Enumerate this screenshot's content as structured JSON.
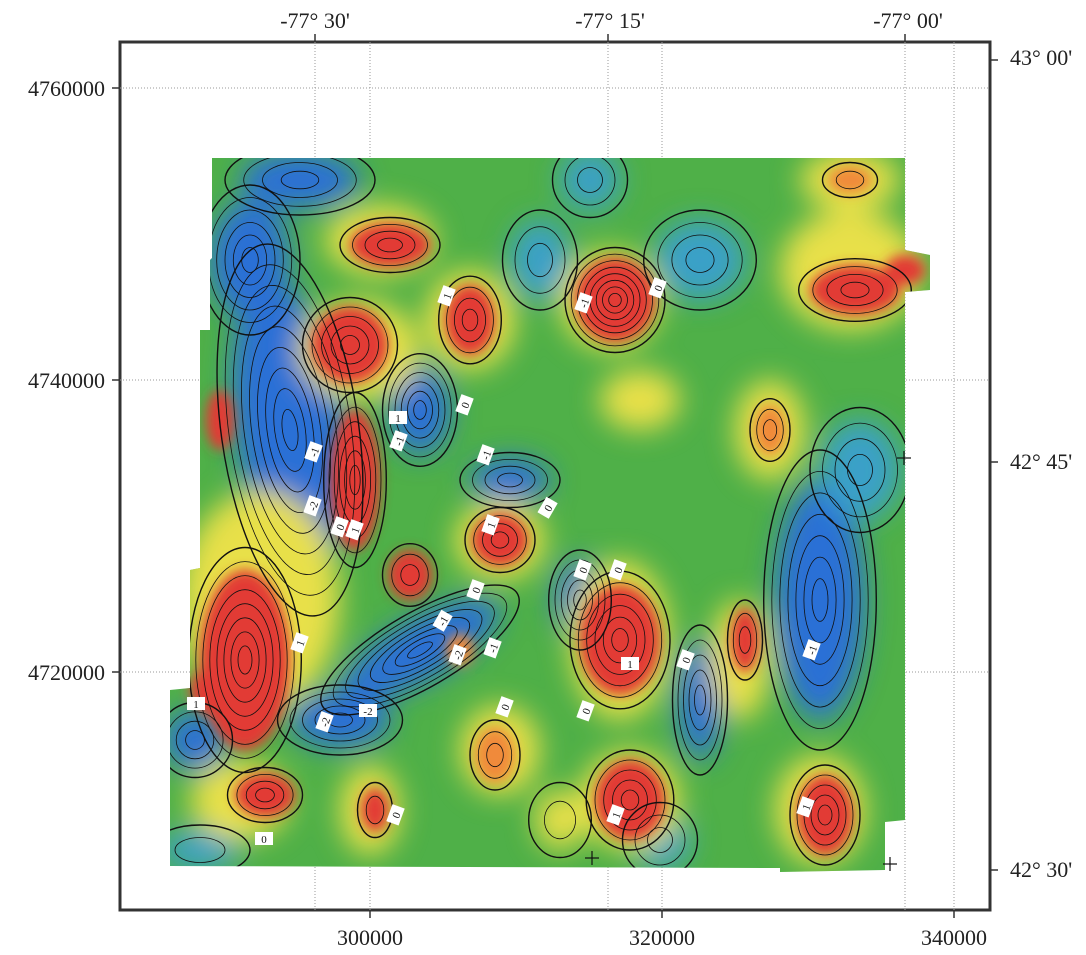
{
  "map": {
    "top_longitude_labels": [
      "-77° 30'",
      "-77° 15'",
      "-77° 00'"
    ],
    "right_latitude_labels": [
      "43° 00'",
      "42° 45'",
      "42° 30'"
    ],
    "left_northing_labels": [
      "4760000",
      "4740000",
      "4720000"
    ],
    "bottom_easting_labels": [
      "300000",
      "320000",
      "340000"
    ],
    "contour_labels": [
      "1",
      "-1",
      "0",
      "1",
      "-1",
      "0",
      "-1",
      "-2",
      "0",
      "1",
      "-1",
      "0",
      "1",
      "0",
      "0",
      "0",
      "-1",
      "-2",
      "-1",
      "1",
      "1",
      "0",
      "-1",
      "1",
      "-2",
      "-2",
      "0",
      "0",
      "0",
      "1",
      "1",
      "0"
    ],
    "colors": {
      "low": "#2c6fd6",
      "mid_low": "#3aa0c8",
      "mid": "#4fb048",
      "mid_high": "#e8e04a",
      "high_orange": "#f08a3a",
      "high": "#e23a35"
    }
  }
}
